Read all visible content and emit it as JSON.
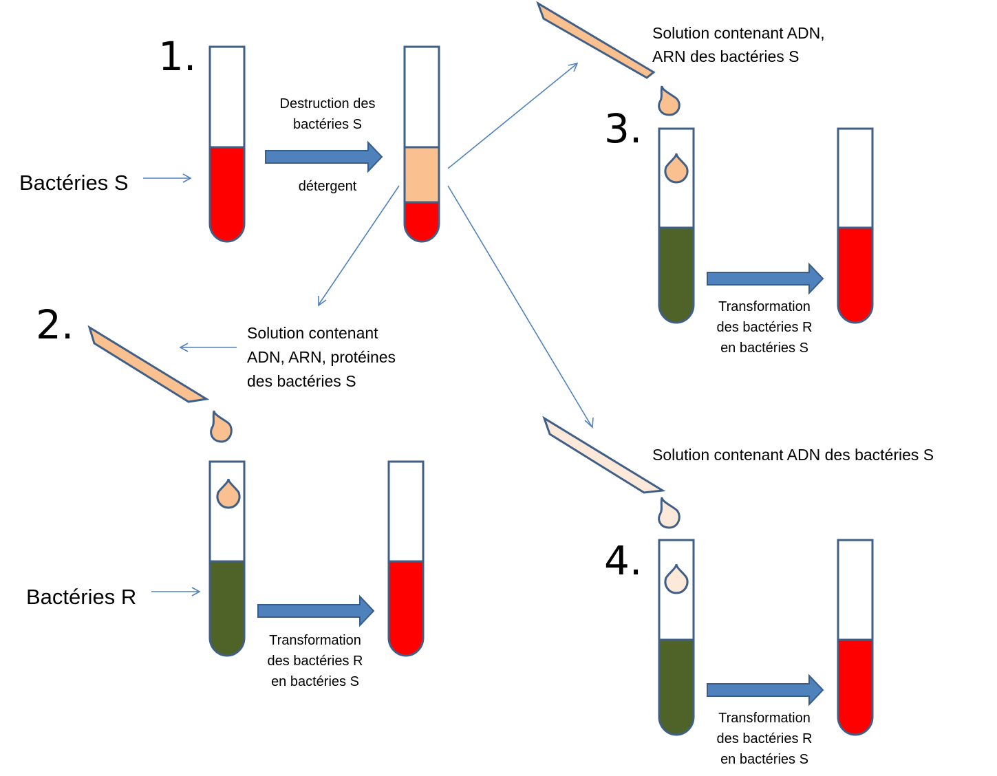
{
  "labels": {
    "step1": "1.",
    "step2": "2.",
    "step3": "3.",
    "step4": "4.",
    "bacteria_s": "Bactéries S",
    "bacteria_r": "Bactéries R",
    "destruction_line1": "Destruction des",
    "destruction_line2": "bactéries S",
    "detergent": "détergent",
    "sol3_line1": "Solution contenant ADN,",
    "sol3_line2": "ARN des bactéries S",
    "sol2_line1": "Solution contenant",
    "sol2_line2": "ADN, ARN, protéines",
    "sol2_line3": "des bactéries S",
    "sol4": "Solution contenant ADN des bactéries S",
    "transform_line1": "Transformation",
    "transform_line2": "des bactéries R",
    "transform_line3": "en bactéries S"
  },
  "colors": {
    "red_culture": "#ff0000",
    "green_culture": "#4f6228",
    "lysate": "#fac090",
    "drop_peach": "#fac090",
    "drop_pale": "#fde9d9",
    "pipette_peach": "#fac090",
    "pipette_pale": "#fde9d9",
    "arrow_blue": "#4f81bd",
    "outline": "#3f5f87"
  }
}
